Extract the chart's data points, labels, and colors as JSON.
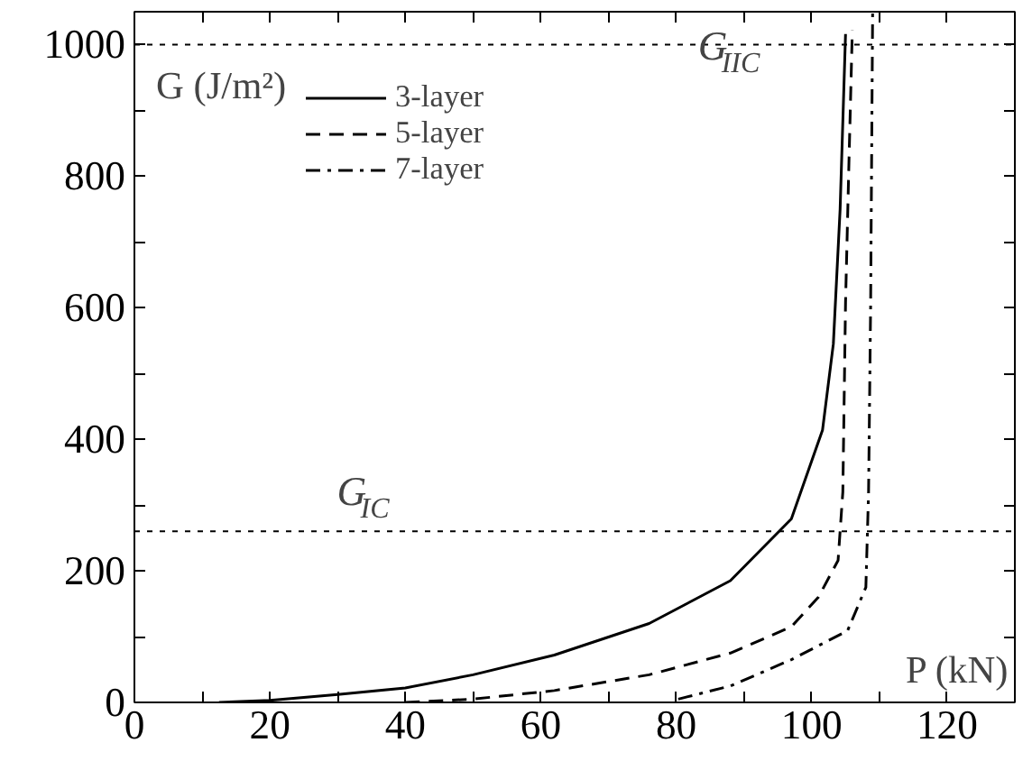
{
  "chart_data": {
    "type": "line",
    "xlabel": "P (kN)",
    "ylabel": "G (J/m²)",
    "xlim": [
      0,
      130
    ],
    "ylim": [
      0,
      1050
    ],
    "xticks": [
      0,
      {
        "value": 10,
        "label": null
      },
      20,
      {
        "value": 30,
        "label": null
      },
      40,
      {
        "value": 50,
        "label": null
      },
      60,
      {
        "value": 70,
        "label": null
      },
      80,
      {
        "value": 90,
        "label": null
      },
      100,
      {
        "value": 110,
        "label": null
      },
      120
    ],
    "yticks": [
      0,
      {
        "value": 100,
        "label": null
      },
      200,
      {
        "value": 300,
        "label": null
      },
      400,
      {
        "value": 500,
        "label": null
      },
      600,
      {
        "value": 700,
        "label": null
      },
      800,
      {
        "value": 900,
        "label": null
      },
      1000
    ],
    "grid": false,
    "legend": "top left",
    "marker": "none",
    "ref_lines": [
      {
        "axis": "y",
        "value": 1000,
        "label": "G$_{IIC}$",
        "color": "#000000",
        "line_style": "dotted"
      },
      {
        "axis": "y",
        "value": 260,
        "label": "G$_{IC}$",
        "color": "#000000",
        "line_style": "dotted"
      }
    ],
    "series": [
      {
        "name": "3-layer",
        "color": "#000000",
        "line_style": "solid",
        "x": [
          12.5,
          20,
          30,
          40,
          50,
          62,
          76,
          88,
          97,
          101.6,
          103.2,
          104.2,
          105
        ],
        "values": [
          0,
          3,
          12,
          22,
          42,
          72,
          120,
          185,
          279,
          414,
          545,
          750,
          1016
        ]
      },
      {
        "name": "5-layer",
        "color": "#000000",
        "line_style": "dashed",
        "x": [
          40,
          50,
          62,
          76,
          88,
          97,
          101,
          103.9,
          104.6,
          105,
          105.5,
          106
        ],
        "values": [
          0,
          5,
          18,
          42,
          75,
          115,
          160,
          216,
          320,
          608,
          820,
          1022
        ]
      },
      {
        "name": "7-layer",
        "color": "#000000",
        "line_style": "dashdot",
        "x": [
          80.3,
          88,
          97,
          105.3,
          108,
          108.4,
          108.7,
          109
        ],
        "values": [
          5,
          25,
          65,
          109,
          175,
          320,
          600,
          1050
        ]
      }
    ]
  }
}
